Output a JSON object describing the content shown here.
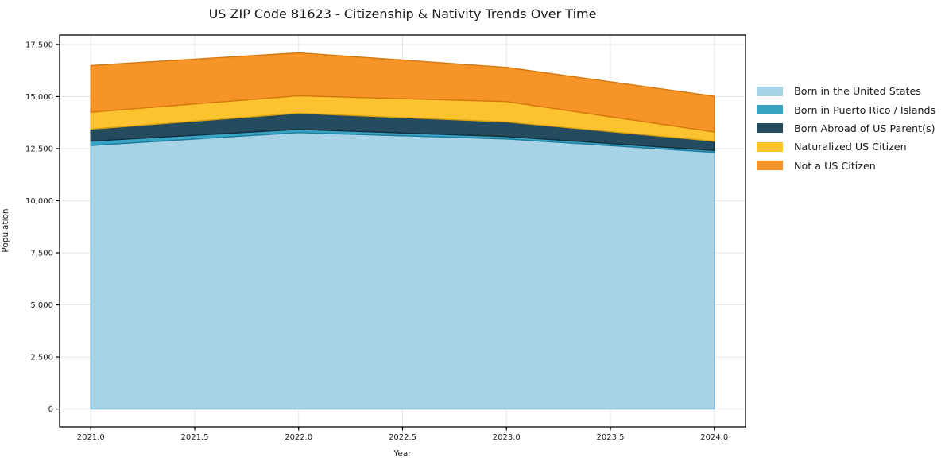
{
  "title": "US ZIP Code 81623 - Citizenship & Nativity Trends Over Time",
  "chart_data": {
    "type": "area",
    "stacked": true,
    "title": "US ZIP Code 81623 - Citizenship & Nativity Trends Over Time",
    "xlabel": "Year",
    "ylabel": "Population",
    "x": [
      2021,
      2022,
      2023,
      2024
    ],
    "series": [
      {
        "name": "Born in the United States",
        "color": "#a8d3e7",
        "edge": "#7cb9d6",
        "values": [
          12650,
          13270,
          12965,
          12320
        ]
      },
      {
        "name": "Born in Puerto Rico / Islands",
        "color": "#38a3c3",
        "edge": "#1f7e9e",
        "values": [
          210,
          155,
          115,
          90
        ]
      },
      {
        "name": "Born Abroad of US Parent(s)",
        "color": "#254b5e",
        "edge": "#142f3d",
        "values": [
          575,
          775,
          700,
          445
        ]
      },
      {
        "name": "Naturalized US Citizen",
        "color": "#fcc230",
        "edge": "#dba010",
        "values": [
          815,
          840,
          980,
          445
        ]
      },
      {
        "name": "Not a US Citizen",
        "color": "#f79428",
        "edge": "#d4770e",
        "values": [
          2240,
          2060,
          1640,
          1715
        ]
      }
    ],
    "xticks": [
      2021.0,
      2021.5,
      2022.0,
      2022.5,
      2023.0,
      2023.5,
      2024.0
    ],
    "xtick_labels": [
      "2021.0",
      "2021.5",
      "2022.0",
      "2022.5",
      "2023.0",
      "2023.5",
      "2024.0"
    ],
    "yticks": [
      0,
      2500,
      5000,
      7500,
      10000,
      12500,
      15000,
      17500
    ],
    "ytick_labels": [
      "0",
      "2,500",
      "5,000",
      "7,500",
      "10,000",
      "12,500",
      "15,000",
      "17,500"
    ],
    "xlim": [
      2020.85,
      2024.15
    ],
    "ylim": [
      -855,
      17955
    ],
    "grid": true,
    "grid_color": "#e6e6e6",
    "axis_color": "#000000",
    "legend_position": "outside-right-upper"
  }
}
